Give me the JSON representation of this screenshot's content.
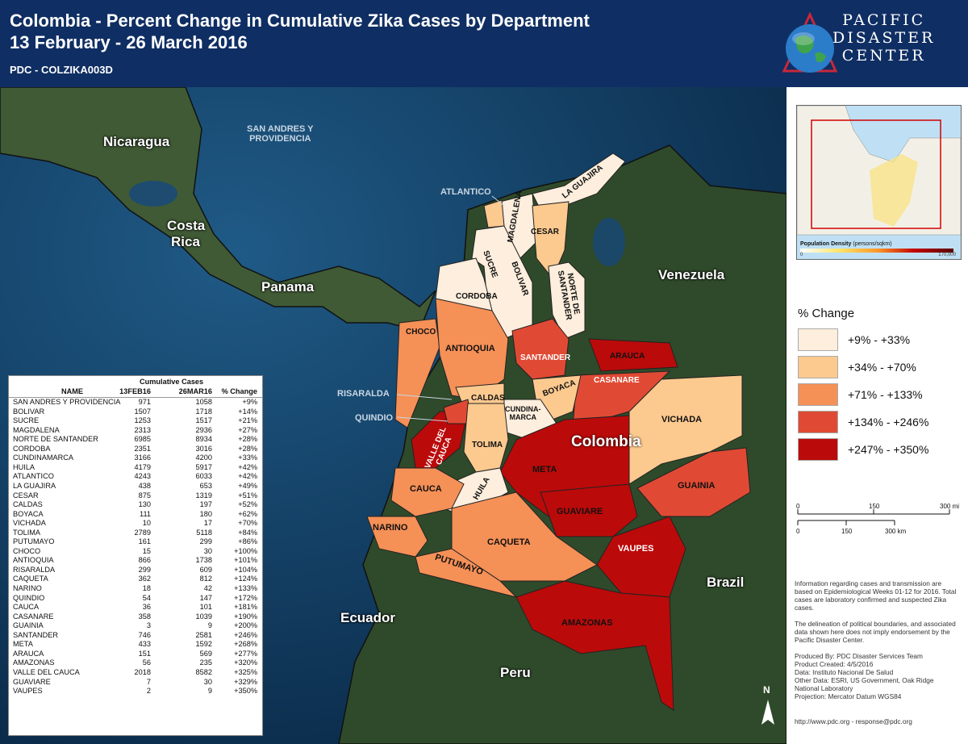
{
  "header": {
    "title_line1": "Colombia - Percent Change in Cumulative Zika Cases by Department",
    "title_line2": "13 February - 26 March 2016",
    "code": "PDC - COLZIKA003D",
    "logo_line1": "PACIFIC",
    "logo_line2": "DISASTER",
    "logo_line3": "CENTER"
  },
  "map_labels": {
    "countries": {
      "nicaragua": "Nicaragua",
      "costa_rica_1": "Costa",
      "costa_rica_2": "Rica",
      "panama": "Panama",
      "venezuela": "Venezuela",
      "colombia": "Colombia",
      "brazil": "Brazil",
      "ecuador": "Ecuador",
      "peru": "Peru"
    },
    "islands_1": "SAN ANDRES Y",
    "islands_2": "PROVIDENCIA",
    "callouts": {
      "atlantico": "ATLANTICO",
      "risaralda": "RISARALDA",
      "quindio": "QUINDIO"
    },
    "departments": {
      "la_guajira": "LA GUAJIRA",
      "magdalena": "MAGDALENA",
      "cesar": "CESAR",
      "sucre": "SUCRE",
      "bolivar": "BOLIVAR",
      "cordoba": "CORDOBA",
      "norte_1": "NORTE DE",
      "norte_2": "SANTANDER",
      "choco": "CHOCO",
      "antioquia": "ANTIOQUIA",
      "santander": "SANTANDER",
      "arauca": "ARAUCA",
      "casanare": "CASANARE",
      "caldas": "CALDAS",
      "boyaca": "BOYACA",
      "cundi_1": "CUNDINA-",
      "cundi_2": "MARCA",
      "vichada": "VICHADA",
      "valle_1": "VALLE DEL",
      "valle_2": "CAUCA",
      "tolima": "TOLIMA",
      "meta": "META",
      "huila": "HUILA",
      "cauca": "CAUCA",
      "guainia": "GUAINIA",
      "guaviare": "GUAVIARE",
      "narino": "NARINO",
      "caqueta": "CAQUETA",
      "putumayo": "PUTUMAYO",
      "vaupes": "VAUPES",
      "amazonas": "AMAZONAS"
    },
    "north_arrow": "N"
  },
  "table": {
    "group_header": "Cumulative Cases",
    "columns": [
      "NAME",
      "13FEB16",
      "26MAR16",
      "% Change"
    ],
    "rows": [
      [
        "SAN ANDRES Y PROVIDENCIA",
        "971",
        "1058",
        "+9%"
      ],
      [
        "BOLIVAR",
        "1507",
        "1718",
        "+14%"
      ],
      [
        "SUCRE",
        "1253",
        "1517",
        "+21%"
      ],
      [
        "MAGDALENA",
        "2313",
        "2936",
        "+27%"
      ],
      [
        "NORTE DE SANTANDER",
        "6985",
        "8934",
        "+28%"
      ],
      [
        "CORDOBA",
        "2351",
        "3016",
        "+28%"
      ],
      [
        "CUNDINAMARCA",
        "3166",
        "4200",
        "+33%"
      ],
      [
        "HUILA",
        "4179",
        "5917",
        "+42%"
      ],
      [
        "ATLANTICO",
        "4243",
        "6033",
        "+42%"
      ],
      [
        "LA GUAJIRA",
        "438",
        "653",
        "+49%"
      ],
      [
        "CESAR",
        "875",
        "1319",
        "+51%"
      ],
      [
        "CALDAS",
        "130",
        "197",
        "+52%"
      ],
      [
        "BOYACA",
        "111",
        "180",
        "+62%"
      ],
      [
        "VICHADA",
        "10",
        "17",
        "+70%"
      ],
      [
        "TOLIMA",
        "2789",
        "5118",
        "+84%"
      ],
      [
        "PUTUMAYO",
        "161",
        "299",
        "+86%"
      ],
      [
        "CHOCO",
        "15",
        "30",
        "+100%"
      ],
      [
        "ANTIOQUIA",
        "866",
        "1738",
        "+101%"
      ],
      [
        "RISARALDA",
        "299",
        "609",
        "+104%"
      ],
      [
        "CAQUETA",
        "362",
        "812",
        "+124%"
      ],
      [
        "NARINO",
        "18",
        "42",
        "+133%"
      ],
      [
        "QUINDIO",
        "54",
        "147",
        "+172%"
      ],
      [
        "CAUCA",
        "36",
        "101",
        "+181%"
      ],
      [
        "CASANARE",
        "358",
        "1039",
        "+190%"
      ],
      [
        "GUAINIA",
        "3",
        "9",
        "+200%"
      ],
      [
        "SANTANDER",
        "746",
        "2581",
        "+246%"
      ],
      [
        "META",
        "433",
        "1592",
        "+268%"
      ],
      [
        "ARAUCA",
        "151",
        "569",
        "+277%"
      ],
      [
        "AMAZONAS",
        "56",
        "235",
        "+320%"
      ],
      [
        "VALLE DEL CAUCA",
        "2018",
        "8582",
        "+325%"
      ],
      [
        "GUAVIARE",
        "7",
        "30",
        "+329%"
      ],
      [
        "VAUPES",
        "2",
        "9",
        "+350%"
      ]
    ]
  },
  "inset": {
    "label": "Population Density",
    "unit": "(persons/sqkm)",
    "min": "0",
    "max": "170,000"
  },
  "legend": {
    "title": "% Change",
    "items": [
      {
        "label": "+9% - +33%",
        "color": "#fdeedd"
      },
      {
        "label": "+34% - +70%",
        "color": "#fcc98f"
      },
      {
        "label": "+71% - +133%",
        "color": "#f59057"
      },
      {
        "label": "+134% - +246%",
        "color": "#e04a34"
      },
      {
        "label": "+247% - +350%",
        "color": "#bb0a0a"
      }
    ]
  },
  "scale": {
    "mi_0": "0",
    "mi_150": "150",
    "mi_300": "300 mi",
    "km_0": "0",
    "km_150": "150",
    "km_300": "300 km"
  },
  "notes": {
    "p1": "Information regarding cases and transmission are based on Epidemiological Weeks 01-12 for 2016. Total cases are laboratory confirmed and suspected Zika cases.",
    "p2": "The delineation of political boundaries, and associated data shown here does not imply endorsement by the Pacific Disaster Center.",
    "p3_1": "Produced By: PDC Disaster Services Team",
    "p3_2": "Product Created: 4/5/2016",
    "p3_3": "Data: Instituto Nacional De Salud",
    "p3_4": "Other Data: ESRI, US Government, Oak Ridge National Laboratory",
    "p3_5": "Projection: Mercator Datum WGS84"
  },
  "footer": "http://www.pdc.org - response@pdc.org"
}
